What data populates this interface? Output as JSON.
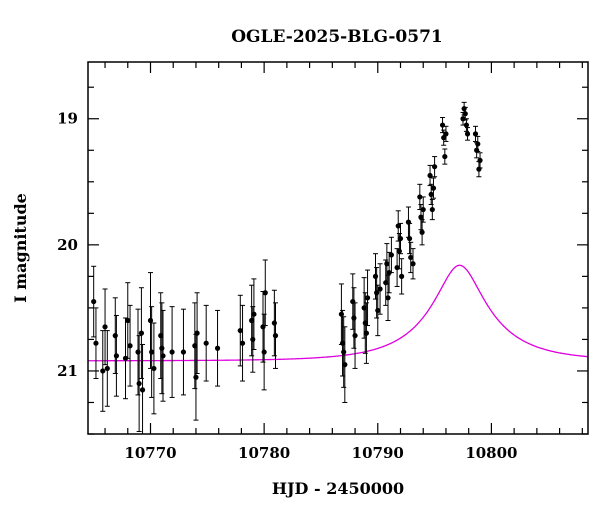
{
  "chart_data": {
    "type": "scatter",
    "title": "OGLE-2025-BLG-0571",
    "xlabel": "HJD - 2450000",
    "ylabel": "I magnitude",
    "xlim": [
      10764.5,
      10808.5
    ],
    "ylim": [
      21.5,
      18.55
    ],
    "y_inverted": true,
    "x_ticks": [
      10770,
      10780,
      10790,
      10800
    ],
    "x_tick_labels": [
      "10770",
      "10780",
      "10790",
      "10800"
    ],
    "y_ticks": [
      19,
      20,
      21
    ],
    "y_tick_labels": [
      "19",
      "20",
      "21"
    ],
    "x_minor_step": 2,
    "y_minor_step": 0.25,
    "colors": {
      "points": "#000000",
      "model": "#e000e0"
    },
    "model": {
      "type": "microlensing_pspl",
      "t0": 10797.2,
      "tE": 6.0,
      "u0": 0.32,
      "baseline_mag": 20.92,
      "blend_fraction": 0.45
    },
    "series": [
      {
        "type": "errorbar",
        "x": [
          10765.0,
          10765.2,
          10765.8,
          10766.0,
          10766.2,
          10766.9,
          10767.0,
          10767.8,
          10768.0,
          10768.2,
          10768.9,
          10769.0,
          10769.2,
          10769.3,
          10770.0,
          10770.1,
          10770.3,
          10770.9,
          10771.0,
          10771.1,
          10771.9,
          10772.9,
          10773.9,
          10774.0,
          10774.1,
          10774.9,
          10775.9,
          10777.9,
          10778.1,
          10778.9,
          10779.0,
          10779.1,
          10779.9,
          10780.0,
          10780.1,
          10780.9,
          10781.0,
          10786.8,
          10786.9,
          10787.0,
          10787.1,
          10787.8,
          10787.9,
          10788.0,
          10788.8,
          10788.9,
          10789.0,
          10789.1,
          10789.8,
          10789.9,
          10790.0,
          10790.2,
          10790.7,
          10790.8,
          10790.9,
          10791.0,
          10791.2,
          10791.7,
          10791.8,
          10791.9,
          10792.0,
          10792.1,
          10792.7,
          10792.8,
          10792.9,
          10793.1,
          10793.7,
          10793.8,
          10793.9,
          10794.0,
          10794.6,
          10794.7,
          10794.8,
          10794.9,
          10795.0,
          10795.7,
          10795.8,
          10795.9,
          10796.0,
          10797.5,
          10797.6,
          10797.7,
          10797.8,
          10797.9,
          10798.6,
          10798.7,
          10798.8,
          10798.9,
          10799.0
        ],
        "y": [
          20.45,
          20.78,
          21.0,
          20.65,
          20.98,
          20.72,
          20.88,
          20.9,
          20.6,
          20.8,
          20.85,
          21.1,
          20.7,
          21.15,
          20.6,
          20.85,
          20.98,
          20.72,
          20.82,
          20.88,
          20.85,
          20.85,
          20.8,
          21.05,
          20.7,
          20.78,
          20.82,
          20.68,
          20.78,
          20.6,
          20.75,
          20.55,
          20.65,
          20.85,
          20.38,
          20.62,
          20.72,
          20.55,
          20.78,
          20.85,
          20.95,
          20.45,
          20.58,
          20.72,
          20.5,
          20.62,
          20.7,
          20.42,
          20.25,
          20.38,
          20.52,
          20.35,
          20.3,
          20.15,
          20.42,
          20.22,
          20.08,
          20.18,
          19.85,
          20.05,
          19.95,
          20.25,
          19.82,
          19.95,
          20.1,
          20.15,
          19.62,
          19.78,
          19.9,
          19.72,
          19.45,
          19.6,
          19.72,
          19.55,
          19.38,
          19.05,
          19.15,
          19.3,
          19.12,
          19.0,
          18.92,
          18.96,
          19.05,
          19.12,
          19.12,
          19.25,
          19.2,
          19.4,
          19.33
        ],
        "yerr": [
          0.28,
          0.28,
          0.32,
          0.3,
          0.3,
          0.3,
          0.32,
          0.32,
          0.3,
          0.32,
          0.34,
          0.38,
          0.36,
          0.36,
          0.38,
          0.36,
          0.36,
          0.34,
          0.36,
          0.36,
          0.36,
          0.34,
          0.34,
          0.34,
          0.32,
          0.3,
          0.3,
          0.28,
          0.3,
          0.28,
          0.26,
          0.28,
          0.28,
          0.3,
          0.26,
          0.26,
          0.26,
          0.24,
          0.26,
          0.28,
          0.3,
          0.22,
          0.24,
          0.26,
          0.24,
          0.24,
          0.24,
          0.22,
          0.18,
          0.2,
          0.2,
          0.2,
          0.18,
          0.16,
          0.18,
          0.16,
          0.14,
          0.15,
          0.12,
          0.14,
          0.12,
          0.14,
          0.12,
          0.12,
          0.12,
          0.12,
          0.1,
          0.1,
          0.1,
          0.1,
          0.08,
          0.08,
          0.08,
          0.08,
          0.08,
          0.06,
          0.06,
          0.06,
          0.06,
          0.05,
          0.05,
          0.05,
          0.05,
          0.05,
          0.06,
          0.06,
          0.06,
          0.06,
          0.06
        ]
      }
    ]
  }
}
